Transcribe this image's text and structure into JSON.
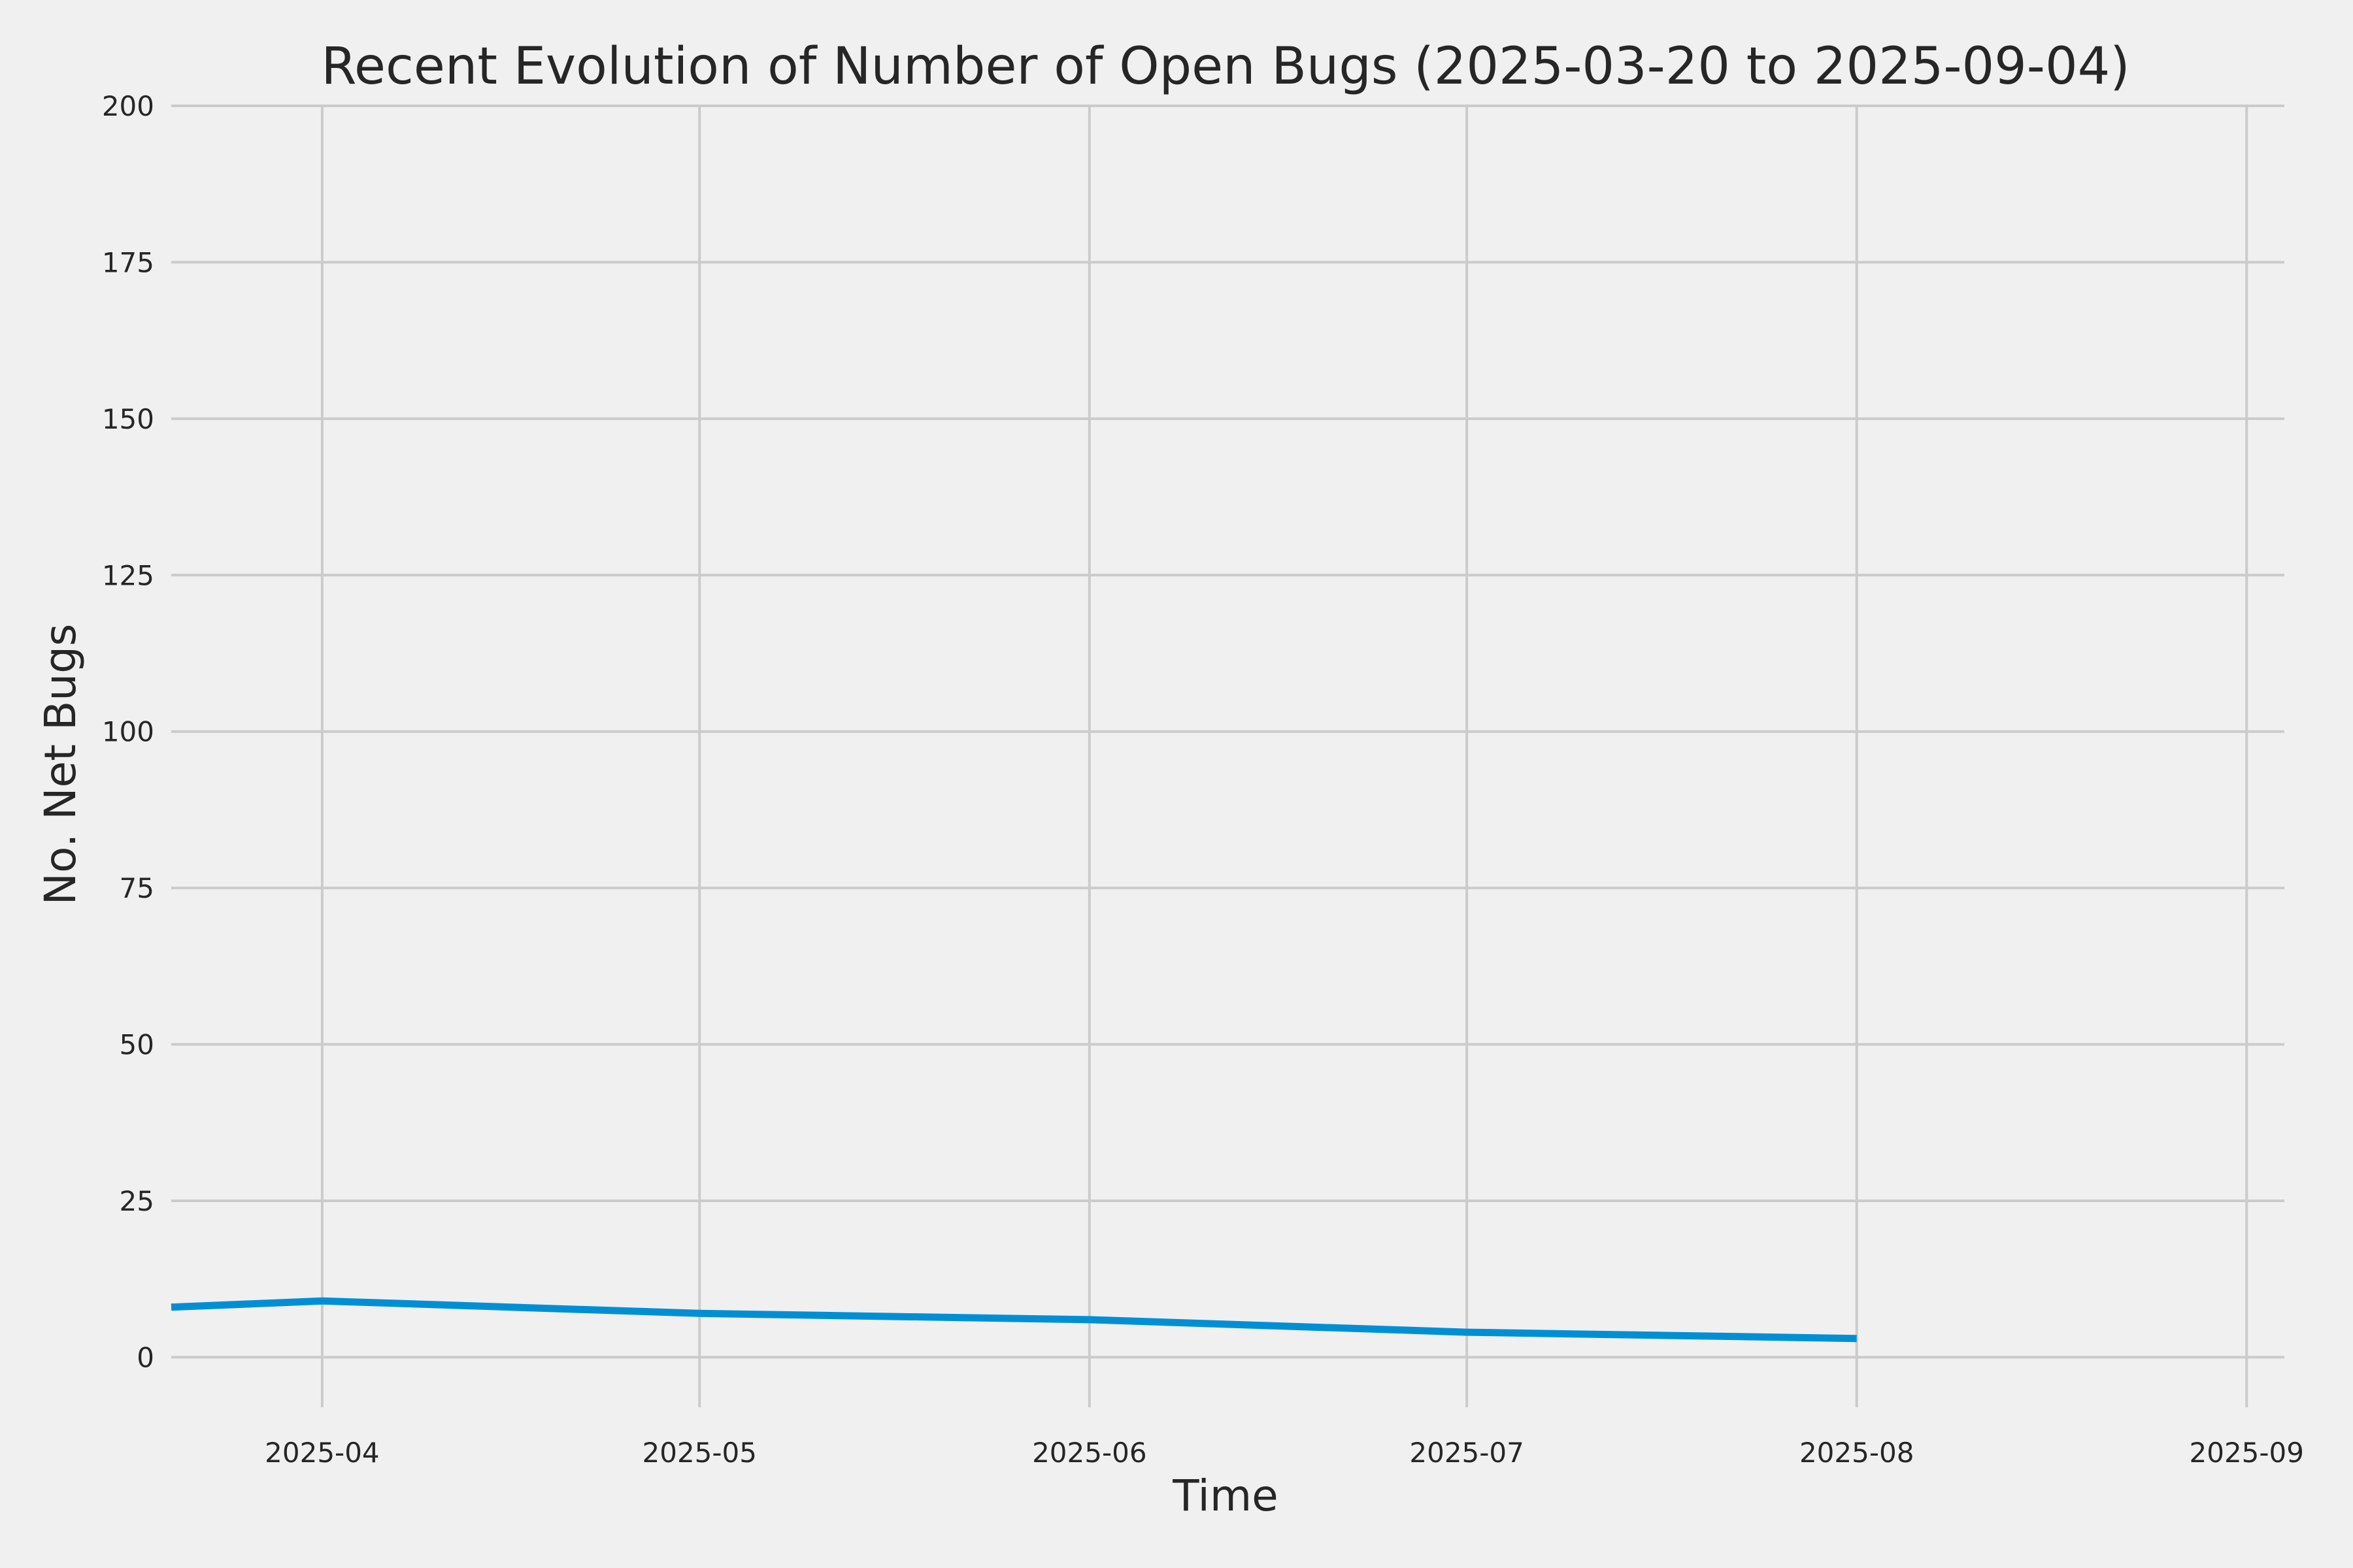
{
  "chart_data": {
    "type": "line",
    "title": "Recent Evolution of Number of Open Bugs (2025-03-20 to 2025-09-04)",
    "xlabel": "Time",
    "ylabel": "No. Net Bugs",
    "x_axis_type": "date",
    "xlim": [
      "2025-03-20",
      "2025-09-04"
    ],
    "ylim": [
      -8,
      200
    ],
    "x_ticks": [
      {
        "date": "2025-04-01",
        "label": "2025-04"
      },
      {
        "date": "2025-05-01",
        "label": "2025-05"
      },
      {
        "date": "2025-06-01",
        "label": "2025-06"
      },
      {
        "date": "2025-07-01",
        "label": "2025-07"
      },
      {
        "date": "2025-08-01",
        "label": "2025-08"
      },
      {
        "date": "2025-09-01",
        "label": "2025-09"
      }
    ],
    "y_ticks": [
      0,
      25,
      50,
      75,
      100,
      125,
      150,
      175,
      200
    ],
    "grid": true,
    "series": [
      {
        "color": "#008fd5",
        "x": [
          "2025-03-20",
          "2025-04-01",
          "2025-05-01",
          "2025-06-01",
          "2025-06-16",
          "2025-07-01",
          "2025-08-01"
        ],
        "y": [
          8,
          9,
          7,
          6,
          5,
          4,
          3
        ]
      }
    ]
  }
}
